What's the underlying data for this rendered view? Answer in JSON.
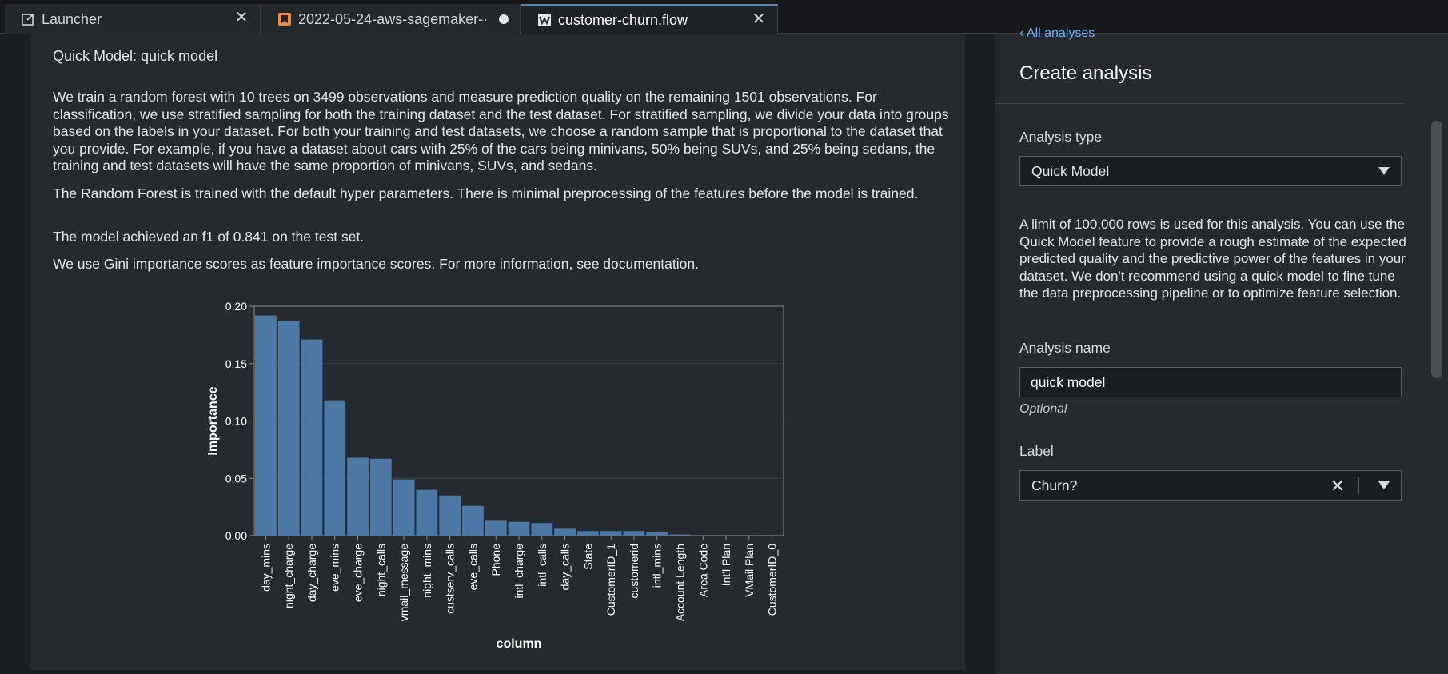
{
  "tabs": [
    {
      "label": "Launcher",
      "icon": "external-link-icon",
      "state": "close"
    },
    {
      "label": "2022-05-24-aws-sagemaker-·",
      "icon": "notebook-icon",
      "state": "unsaved"
    },
    {
      "label": "customer-churn.flow",
      "icon": "data-wrangler-icon",
      "state": "close"
    }
  ],
  "report": {
    "title": "Quick Model: quick model",
    "paragraphs": [
      "We train a random forest with 10 trees on 3499 observations and measure prediction quality on the remaining 1501 observations. For classification, we use stratified sampling for both the training dataset and the test dataset. For stratified sampling, we divide your data into groups based on the labels in your dataset. For both your training and test datasets, we choose a random sample that is proportional to the dataset that you provide. For example, if you have a dataset about cars with 25% of the cars being minivans, 50% being SUVs, and 25% being sedans, the training and test datasets will have the same proportion of minivans, SUVs, and sedans.",
      "The Random Forest is trained with the default hyper parameters. There is minimal preprocessing of the features before the model is trained.",
      "The model achieved an f1 of 0.841 on the test set.",
      "We use Gini importance scores as feature importance scores. For more information, see documentation."
    ]
  },
  "chart_data": {
    "type": "bar",
    "categories": [
      "day_mins",
      "night_charge",
      "day_charge",
      "eve_mins",
      "eve_charge",
      "night_calls",
      "vmail_message",
      "night_mins",
      "custserv_calls",
      "eve_calls",
      "Phone",
      "intl_charge",
      "intl_calls",
      "day_calls",
      "State",
      "CustomerID_1",
      "customerid",
      "intl_mins",
      "Account Length",
      "Area Code",
      "Int'l Plan",
      "VMail Plan",
      "CustomerID_0"
    ],
    "values": [
      0.192,
      0.187,
      0.171,
      0.118,
      0.068,
      0.067,
      0.049,
      0.04,
      0.035,
      0.026,
      0.013,
      0.012,
      0.011,
      0.006,
      0.004,
      0.004,
      0.004,
      0.003,
      0.001,
      0.0,
      0.0,
      0.0,
      0.0
    ],
    "xlabel": "column",
    "ylabel": "Importance",
    "ylim": [
      0,
      0.2
    ],
    "yticks": [
      "0.00",
      "0.05",
      "0.10",
      "0.15",
      "0.20"
    ],
    "bar_color": "#4c78a8",
    "grid": true
  },
  "sidebar": {
    "back_link": "All analyses",
    "title": "Create analysis",
    "analysis_type_label": "Analysis type",
    "analysis_type_value": "Quick Model",
    "description": "A limit of 100,000 rows is used for this analysis. You can use the Quick Model feature to provide a rough estimate of the expected predicted quality and the predictive power of the features in your dataset. We don't recommend using a quick model to fine tune the data preprocessing pipeline or to optimize feature selection.",
    "analysis_name_label": "Analysis name",
    "analysis_name_value": "quick model",
    "optional_text": "Optional",
    "label_label": "Label",
    "label_value": "Churn?"
  }
}
